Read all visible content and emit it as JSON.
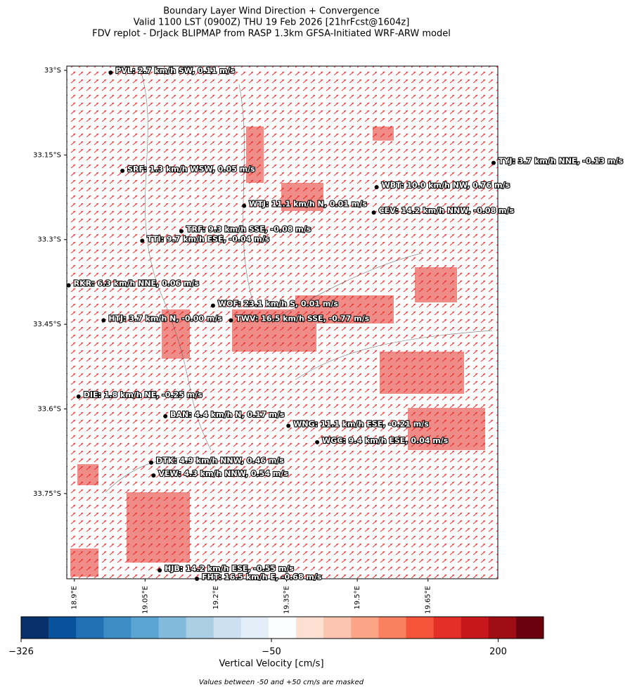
{
  "chart_data": {
    "type": "map",
    "title": [
      "Boundary Layer Wind Direction + Convergence",
      "Valid 1100 LST (0900Z) THU 19 Feb 2026 [21hrFcst@1604z]",
      "FDV replot - DrJack BLIPMAP from RASP 1.3km GFSA-Initiated WRF-ARW model"
    ],
    "xlim": [
      18.884,
      19.798
    ],
    "ylim": [
      -33.901,
      -32.9925
    ],
    "xticks": [
      {
        "value": 18.9,
        "label": "18.9°E"
      },
      {
        "value": 19.05,
        "label": "19.05°E"
      },
      {
        "value": 19.2,
        "label": "19.2°E"
      },
      {
        "value": 19.35,
        "label": "19.35°E"
      },
      {
        "value": 19.5,
        "label": "19.5°E"
      },
      {
        "value": 19.65,
        "label": "19.65°E"
      }
    ],
    "yticks": [
      {
        "value": -33.0,
        "label": "33°S"
      },
      {
        "value": -33.15,
        "label": "33.15°S"
      },
      {
        "value": -33.3,
        "label": "33.3°S"
      },
      {
        "value": -33.45,
        "label": "33.45°S"
      },
      {
        "value": -33.6,
        "label": "33.6°S"
      },
      {
        "value": -33.75,
        "label": "33.75°S"
      }
    ],
    "stations": [
      {
        "label": "PVL: 2.7 km/h SW, 0.11 m/s",
        "lon": 18.977,
        "lat": -33.004
      },
      {
        "label": "SRF: 1.3 km/h WSW, 0.05 m/s",
        "lon": 19.002,
        "lat": -33.178
      },
      {
        "label": "WTJ: 11.1 km/h N, 0.01 m/s",
        "lon": 19.26,
        "lat": -33.24
      },
      {
        "label": "WBT: 10.0 km/h NW, 0.76 m/s",
        "lon": 19.541,
        "lat": -33.207
      },
      {
        "label": "CEV: 14.2 km/h NNW, -0.08 m/s",
        "lon": 19.535,
        "lat": -33.252
      },
      {
        "label": "TYJ: 3.7 km/h NNE, -0.13 m/s",
        "lon": 19.789,
        "lat": -33.164
      },
      {
        "label": "TRF: 9.3 km/h SSE, -0.08 m/s",
        "lon": 19.127,
        "lat": -33.285
      },
      {
        "label": "TTI: 9.7 km/h ESE, -0.04 m/s",
        "lon": 19.044,
        "lat": -33.302
      },
      {
        "label": "RKR: 6.3 km/h NNE, 0.06 m/s",
        "lon": 18.888,
        "lat": -33.381
      },
      {
        "label": "WOF: 23.1 km/h S, 0.01 m/s",
        "lon": 19.194,
        "lat": -33.417
      },
      {
        "label": "HTJ: 3.7 km/h N, -0.00 m/s",
        "lon": 18.962,
        "lat": -33.443
      },
      {
        "label": "TWV: 16.5 km/h SSE, -0.77 m/s",
        "lon": 19.232,
        "lat": -33.443
      },
      {
        "label": "DIE: 1.8 km/h NE, -0.25 m/s",
        "lon": 18.909,
        "lat": -33.578
      },
      {
        "label": "BAN: 4.4 km/h N, 0.17 m/s",
        "lon": 19.093,
        "lat": -33.613
      },
      {
        "label": "WNG: 11.1 km/h ESE, -0.21 m/s",
        "lon": 19.354,
        "lat": -33.63
      },
      {
        "label": "WGC: 9.4 km/h ESE, 0.04 m/s",
        "lon": 19.415,
        "lat": -33.659
      },
      {
        "label": "DTK: 4.9 km/h NNW, 0.46 m/s",
        "lon": 19.063,
        "lat": -33.695
      },
      {
        "label": "VEW: 4.3 km/h NNW, 0.54 m/s",
        "lon": 19.068,
        "lat": -33.718
      },
      {
        "label": "HJB: 14.2 km/h ESE, -0.55 m/s",
        "lon": 19.081,
        "lat": -33.886
      },
      {
        "label": "FHT: 16.5 km/h E, -0.68 m/s",
        "lon": 19.16,
        "lat": -33.901
      }
    ],
    "colorbar": {
      "label": "Vertical Velocity [cm/s]",
      "lim": [
        -326,
        250
      ],
      "colors": [
        "#08306b",
        "#08519c",
        "#2171b5",
        "#3d8dc4",
        "#5ba3d0",
        "#82badb",
        "#aacfe5",
        "#cde0f1",
        "#e3eef8",
        "#fbfdff",
        "#fee0d2",
        "#fcc5b0",
        "#fca486",
        "#fb8060",
        "#f6553c",
        "#e32f27",
        "#c5171c",
        "#9e0d14",
        "#6b010e"
      ],
      "ticks": [
        {
          "value": -326,
          "label": "−326"
        },
        {
          "value": -50,
          "label": "−50"
        },
        200
      ]
    },
    "note": "Values between -50 and +50 cm/s are masked"
  }
}
